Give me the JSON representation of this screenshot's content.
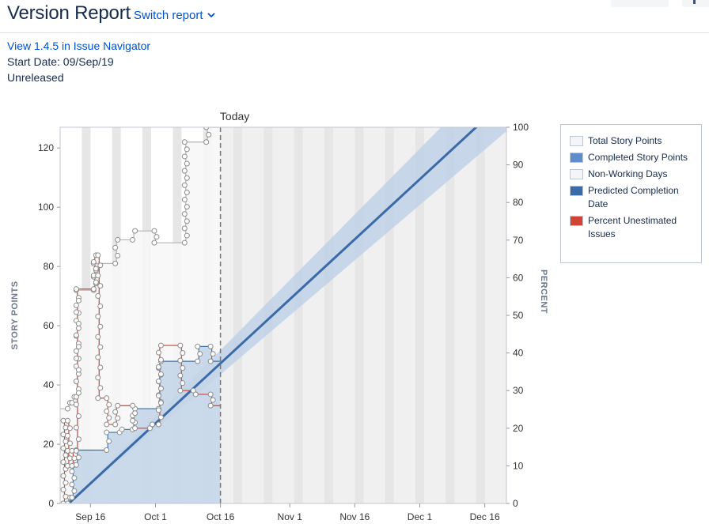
{
  "header": {
    "title": "Version Report",
    "switch_label": "Switch report"
  },
  "meta": {
    "navigator_link": "View 1.4.5 in Issue Navigator",
    "start_date": "Start Date: 09/Sep/19",
    "status": "Unreleased"
  },
  "legend": [
    {
      "label": "Total Story Points",
      "color": "#f4f5f7"
    },
    {
      "label": "Completed Story Points",
      "color": "#5d8ecb"
    },
    {
      "label": "Non-Working Days",
      "color": "#f4f5f7"
    },
    {
      "label": "Predicted Completion Date",
      "color": "#3a6aa8"
    },
    {
      "label": "Percent Unestimated Issues",
      "color": "#d04437"
    }
  ],
  "chart_data": {
    "type": "area",
    "x_axis": {
      "type": "date",
      "range": [
        "2019-09-09",
        "2019-12-21"
      ],
      "ticks": [
        "Sep 16",
        "Oct 1",
        "Oct 16",
        "Nov 1",
        "Nov 16",
        "Dec 1",
        "Dec 16"
      ],
      "tick_dates": [
        "2019-09-16",
        "2019-10-01",
        "2019-10-16",
        "2019-11-01",
        "2019-11-16",
        "2019-12-01",
        "2019-12-16"
      ]
    },
    "y_axis": {
      "label": "STORY POINTS",
      "range": [
        0,
        127
      ],
      "ticks": [
        "0",
        "20",
        "40",
        "60",
        "80",
        "100",
        "120"
      ],
      "tick_values": [
        0,
        20,
        40,
        60,
        80,
        100,
        120
      ]
    },
    "y2_axis": {
      "label": "PERCENT",
      "range": [
        0,
        100
      ],
      "ticks": [
        "0",
        "10",
        "20",
        "30",
        "40",
        "50",
        "60",
        "70",
        "80",
        "90",
        "100"
      ],
      "tick_values": [
        0,
        10,
        20,
        30,
        40,
        50,
        60,
        70,
        80,
        90,
        100
      ]
    },
    "today_label": "Today",
    "today": "2019-10-16",
    "series": [
      {
        "name": "Total Story Points",
        "color": "#b3b3b3",
        "points": [
          [
            "2019-09-09",
            32
          ],
          [
            "2019-09-11",
            32
          ],
          [
            "2019-09-11",
            34
          ],
          [
            "2019-09-12",
            34
          ],
          [
            "2019-09-12",
            36
          ],
          [
            "2019-09-13",
            36
          ],
          [
            "2019-09-13",
            72
          ],
          [
            "2019-09-17",
            72
          ],
          [
            "2019-09-17",
            81
          ],
          [
            "2019-09-22",
            81
          ],
          [
            "2019-09-22",
            89
          ],
          [
            "2019-09-26",
            89
          ],
          [
            "2019-09-26",
            92
          ],
          [
            "2019-10-01",
            92
          ],
          [
            "2019-10-01",
            88
          ],
          [
            "2019-10-08",
            88
          ],
          [
            "2019-10-08",
            122
          ],
          [
            "2019-10-13",
            122
          ],
          [
            "2019-10-13",
            127
          ],
          [
            "2019-10-16",
            127
          ]
        ]
      },
      {
        "name": "Completed Story Points",
        "color": "#3572b0",
        "points": [
          [
            "2019-09-09",
            0
          ],
          [
            "2019-09-11",
            0
          ],
          [
            "2019-09-11",
            2
          ],
          [
            "2019-09-12",
            2
          ],
          [
            "2019-09-12",
            13
          ],
          [
            "2019-09-13",
            13
          ],
          [
            "2019-09-13",
            18
          ],
          [
            "2019-09-20",
            18
          ],
          [
            "2019-09-20",
            24
          ],
          [
            "2019-09-23",
            24
          ],
          [
            "2019-09-23",
            25
          ],
          [
            "2019-09-26",
            25
          ],
          [
            "2019-09-26",
            32
          ],
          [
            "2019-10-02",
            32
          ],
          [
            "2019-10-02",
            48
          ],
          [
            "2019-10-11",
            48
          ],
          [
            "2019-10-11",
            53
          ],
          [
            "2019-10-14",
            53
          ],
          [
            "2019-10-14",
            48
          ],
          [
            "2019-10-16",
            48
          ]
        ]
      },
      {
        "name": "Percent Unestimated Issues",
        "axis": "y2",
        "color": "#d04437",
        "points": [
          [
            "2019-09-09",
            0
          ],
          [
            "2019-09-10",
            0
          ],
          [
            "2019-09-10",
            22
          ],
          [
            "2019-09-11",
            22
          ],
          [
            "2019-09-11",
            10
          ],
          [
            "2019-09-12",
            10
          ],
          [
            "2019-09-12",
            14
          ],
          [
            "2019-09-13",
            14
          ],
          [
            "2019-09-13",
            57
          ],
          [
            "2019-09-17",
            57
          ],
          [
            "2019-09-17",
            66
          ],
          [
            "2019-09-18",
            66
          ],
          [
            "2019-09-18",
            28
          ],
          [
            "2019-09-20",
            28
          ],
          [
            "2019-09-20",
            21
          ],
          [
            "2019-09-22",
            21
          ],
          [
            "2019-09-22",
            26
          ],
          [
            "2019-09-26",
            26
          ],
          [
            "2019-09-26",
            20
          ],
          [
            "2019-09-30",
            20
          ],
          [
            "2019-09-30",
            21
          ],
          [
            "2019-10-02",
            21
          ],
          [
            "2019-10-02",
            42
          ],
          [
            "2019-10-07",
            42
          ],
          [
            "2019-10-07",
            30
          ],
          [
            "2019-10-10",
            30
          ],
          [
            "2019-10-10",
            29
          ],
          [
            "2019-10-14",
            29
          ],
          [
            "2019-10-14",
            26
          ],
          [
            "2019-10-16",
            26
          ]
        ]
      },
      {
        "name": "Predicted Completion Date",
        "color": "#3a6aa8",
        "points": [
          [
            "2019-09-11",
            0
          ],
          [
            "2019-12-14",
            127
          ]
        ],
        "band_color": "#b9cde6"
      }
    ],
    "non_working_days": [
      [
        "2019-09-14",
        "2019-09-16"
      ],
      [
        "2019-09-21",
        "2019-09-23"
      ],
      [
        "2019-09-28",
        "2019-09-30"
      ],
      [
        "2019-10-05",
        "2019-10-07"
      ],
      [
        "2019-10-12",
        "2019-10-14"
      ],
      [
        "2019-10-19",
        "2019-10-21"
      ],
      [
        "2019-10-26",
        "2019-10-28"
      ],
      [
        "2019-11-02",
        "2019-11-04"
      ],
      [
        "2019-11-09",
        "2019-11-11"
      ],
      [
        "2019-11-16",
        "2019-11-18"
      ],
      [
        "2019-11-23",
        "2019-11-25"
      ],
      [
        "2019-11-30",
        "2019-12-02"
      ],
      [
        "2019-12-07",
        "2019-12-09"
      ],
      [
        "2019-12-14",
        "2019-12-16"
      ]
    ],
    "grid": false,
    "legend_position": "right"
  }
}
